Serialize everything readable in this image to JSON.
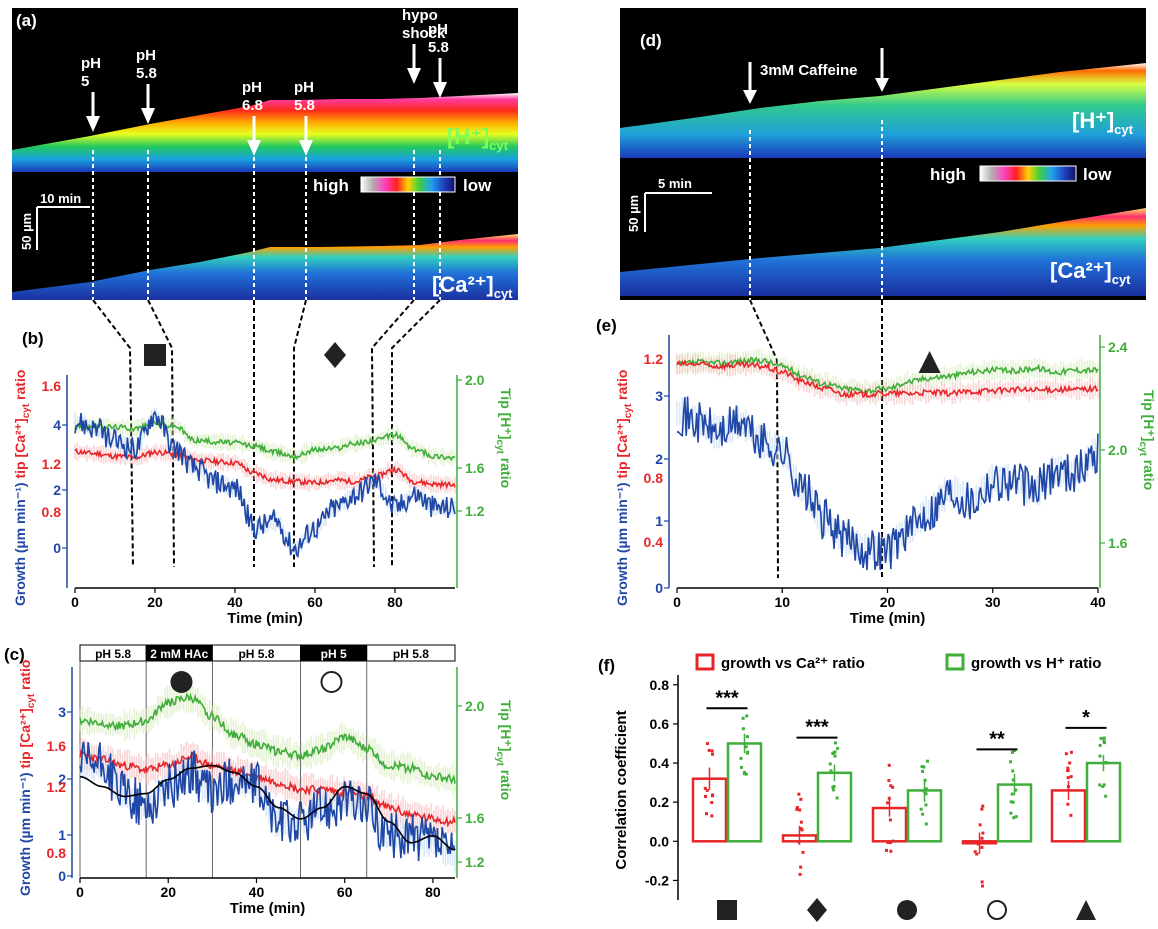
{
  "colors": {
    "red": "#e8262a",
    "green": "#3fae3a",
    "blue": "#1f47a6",
    "black": "#000000"
  },
  "panel_a": {
    "letter": "(a)",
    "arrows": [
      {
        "label_lines": [
          "pH",
          "5"
        ],
        "time_min": 5
      },
      {
        "label_lines": [
          "pH",
          "5.8"
        ],
        "time_min": 15
      },
      {
        "label_lines": [
          "pH",
          "6.8"
        ],
        "time_min": 45
      },
      {
        "label_lines": [
          "pH",
          "5.8"
        ],
        "time_min": 55
      },
      {
        "label_lines": [
          "hypo",
          "shock"
        ],
        "time_min": 75
      },
      {
        "label_lines": [
          "pH",
          "5.8"
        ],
        "time_min": 80
      }
    ],
    "h_label": "[H⁺]",
    "h_sub": "cyt",
    "ca_label": "[Ca²⁺]",
    "ca_sub": "cyt",
    "colorbar_high": "high",
    "colorbar_low": "low",
    "scale_time": "10 min",
    "scale_space": "50 µm"
  },
  "panel_d": {
    "letter": "(d)",
    "arrow_label": "3mM Caffeine",
    "h_label": "[H⁺]",
    "h_sub": "cyt",
    "ca_label": "[Ca²⁺]",
    "ca_sub": "cyt",
    "colorbar_high": "high",
    "colorbar_low": "low",
    "scale_time": "5 min",
    "scale_space": "50 µm"
  },
  "chart_data": [
    {
      "panel": "(b)",
      "type": "line",
      "xlabel": "Time (min)",
      "xlim": [
        0,
        95
      ],
      "x_ticks": [
        0,
        20,
        40,
        60,
        80
      ],
      "ylabel_left_parts": [
        "Growth (µm min⁻¹)",
        "tip [Ca²⁺]",
        "cyt",
        " ratio"
      ],
      "ylabel_right_parts": [
        "Tip [H⁺]",
        "cyt",
        " ratio"
      ],
      "left_ticks_growth": [
        "0",
        "2",
        "4"
      ],
      "left_ticks_ca": [
        "0.8",
        "1.2",
        "1.6"
      ],
      "right_ticks": [
        "1.2",
        "1.6",
        "2.0"
      ],
      "markers": [
        {
          "symbol": "square",
          "x": 20
        },
        {
          "symbol": "diamond",
          "x": 65
        }
      ],
      "event_times": [
        15,
        25,
        45,
        55,
        75,
        80
      ],
      "series": [
        {
          "color": "red",
          "x": [
            0,
            5,
            10,
            15,
            20,
            25,
            30,
            35,
            40,
            45,
            50,
            55,
            60,
            65,
            70,
            75,
            80,
            85,
            90,
            95
          ],
          "y": [
            1.45,
            1.42,
            1.38,
            1.36,
            1.44,
            1.42,
            1.33,
            1.3,
            1.28,
            1.12,
            1.02,
            1.0,
            0.98,
            1.02,
            1.0,
            1.08,
            1.18,
            1.0,
            0.96,
            0.95
          ]
        },
        {
          "color": "green",
          "x": [
            0,
            5,
            10,
            15,
            20,
            25,
            30,
            35,
            40,
            45,
            50,
            55,
            60,
            65,
            70,
            75,
            80,
            85,
            90,
            95
          ],
          "y": [
            1.82,
            1.83,
            1.82,
            1.8,
            1.87,
            1.83,
            1.62,
            1.6,
            1.58,
            1.53,
            1.44,
            1.38,
            1.48,
            1.5,
            1.57,
            1.62,
            1.7,
            1.48,
            1.38,
            1.36
          ]
        },
        {
          "color": "blue",
          "x": [
            0,
            5,
            10,
            15,
            20,
            25,
            30,
            35,
            40,
            45,
            50,
            55,
            60,
            65,
            70,
            75,
            80,
            85,
            90,
            95
          ],
          "y": [
            1.9,
            1.8,
            1.6,
            1.5,
            2.0,
            1.5,
            1.2,
            1.0,
            0.9,
            0.3,
            0.4,
            0.0,
            0.3,
            0.6,
            0.8,
            1.0,
            0.6,
            0.8,
            0.6,
            0.6
          ]
        }
      ]
    },
    {
      "panel": "(c)",
      "type": "line",
      "xlabel": "Time (min)",
      "xlim": [
        0,
        85
      ],
      "x_ticks": [
        0,
        20,
        40,
        60,
        80
      ],
      "ylabel_left_parts": [
        "Growth (µm min⁻¹)",
        "tip [Ca²⁺]",
        "cyt",
        " ratio"
      ],
      "ylabel_right_parts": [
        "Tip [H⁺]",
        "cyt",
        " ratio"
      ],
      "left_ticks_growth": [
        "0",
        "1",
        "2",
        "3"
      ],
      "left_ticks_ca": [
        "0.8",
        "1.2",
        "1.6"
      ],
      "right_ticks": [
        "1.2",
        "1.6",
        "2.0"
      ],
      "bands": [
        {
          "label": "pH 5.8",
          "x0": 0,
          "x1": 15,
          "dark": false
        },
        {
          "label": "2 mM HAc",
          "x0": 15,
          "x1": 30,
          "dark": true
        },
        {
          "label": "pH 5.8",
          "x0": 30,
          "x1": 50,
          "dark": false
        },
        {
          "label": "pH 5",
          "x0": 50,
          "x1": 65,
          "dark": true
        },
        {
          "label": "pH 5.8",
          "x0": 65,
          "x1": 85,
          "dark": false
        }
      ],
      "markers": [
        {
          "symbol": "filled-circle",
          "x": 23
        },
        {
          "symbol": "open-circle",
          "x": 57
        }
      ],
      "series": [
        {
          "color": "red",
          "x": [
            0,
            5,
            10,
            15,
            20,
            25,
            30,
            35,
            40,
            45,
            50,
            55,
            60,
            65,
            70,
            75,
            80,
            85
          ],
          "y": [
            1.58,
            1.54,
            1.5,
            1.47,
            1.5,
            1.56,
            1.5,
            1.46,
            1.42,
            1.38,
            1.33,
            1.33,
            1.31,
            1.28,
            1.2,
            1.15,
            1.12,
            1.1
          ]
        },
        {
          "color": "green",
          "x": [
            0,
            5,
            10,
            15,
            20,
            25,
            30,
            35,
            40,
            45,
            50,
            55,
            60,
            65,
            70,
            75,
            80,
            85
          ],
          "y": [
            1.82,
            1.8,
            1.78,
            1.82,
            1.95,
            1.98,
            1.85,
            1.72,
            1.65,
            1.6,
            1.57,
            1.62,
            1.7,
            1.62,
            1.5,
            1.48,
            1.42,
            1.4
          ]
        },
        {
          "color": "blue",
          "x": [
            0,
            5,
            10,
            15,
            20,
            25,
            30,
            35,
            40,
            45,
            50,
            55,
            60,
            65,
            70,
            75,
            80,
            85
          ],
          "y": [
            1.5,
            1.5,
            1.3,
            1.2,
            1.35,
            1.45,
            1.3,
            1.4,
            1.35,
            1.1,
            1.1,
            1.2,
            1.25,
            1.2,
            1.0,
            1.0,
            0.95,
            0.85
          ]
        },
        {
          "color": "black",
          "x": [
            0,
            5,
            10,
            15,
            20,
            25,
            30,
            35,
            40,
            45,
            50,
            55,
            60,
            65,
            70,
            75,
            80,
            85
          ],
          "y": [
            1.42,
            1.35,
            1.28,
            1.3,
            1.4,
            1.48,
            1.5,
            1.45,
            1.35,
            1.2,
            1.12,
            1.2,
            1.35,
            1.3,
            1.1,
            0.95,
            1.0,
            0.9
          ]
        }
      ]
    },
    {
      "panel": "(e)",
      "type": "line",
      "xlabel": "Time (min)",
      "xlim": [
        0,
        40
      ],
      "x_ticks": [
        0,
        10,
        20,
        30,
        40
      ],
      "ylabel_left_parts": [
        "Growth (µm min⁻¹)",
        "tip [Ca²⁺]",
        "cyt",
        " ratio"
      ],
      "ylabel_right_parts": [
        "Tip [H⁺]",
        "cyt",
        " ratio"
      ],
      "left_ticks_growth": [
        "0",
        "1",
        "2",
        "3"
      ],
      "left_ticks_ca": [
        "0.4",
        "0.8",
        "1.2"
      ],
      "right_ticks": [
        "1.6",
        "2.0",
        "2.4"
      ],
      "markers": [
        {
          "symbol": "triangle",
          "x": 24
        }
      ],
      "event_times": [
        10,
        20
      ],
      "series": [
        {
          "color": "green",
          "x": [
            0,
            2,
            4,
            6,
            8,
            10,
            12,
            14,
            16,
            18,
            20,
            22,
            24,
            26,
            28,
            30,
            32,
            34,
            36,
            38,
            40
          ],
          "y": [
            2.3,
            2.32,
            2.31,
            2.33,
            2.34,
            2.28,
            2.18,
            2.1,
            2.05,
            2.03,
            2.05,
            2.12,
            2.16,
            2.18,
            2.22,
            2.24,
            2.23,
            2.26,
            2.22,
            2.24,
            2.24
          ]
        },
        {
          "color": "red",
          "x": [
            0,
            2,
            4,
            6,
            8,
            10,
            12,
            14,
            16,
            18,
            20,
            22,
            24,
            26,
            28,
            30,
            32,
            34,
            36,
            38,
            40
          ],
          "y": [
            2.3,
            2.3,
            2.28,
            2.29,
            2.28,
            2.22,
            2.12,
            2.05,
            1.99,
            1.99,
            2.0,
            2.0,
            2.01,
            2.0,
            2.02,
            2.03,
            2.04,
            2.03,
            2.04,
            2.04,
            2.05
          ]
        },
        {
          "color": "blue",
          "x": [
            0,
            2,
            4,
            6,
            8,
            10,
            12,
            14,
            16,
            18,
            20,
            22,
            24,
            26,
            28,
            30,
            32,
            34,
            36,
            38,
            40
          ],
          "y": [
            1.8,
            1.7,
            1.6,
            1.7,
            1.5,
            1.4,
            1.0,
            0.7,
            0.5,
            0.4,
            0.4,
            0.6,
            0.8,
            1.0,
            0.9,
            1.1,
            1.1,
            1.0,
            1.2,
            1.2,
            1.4
          ]
        }
      ]
    },
    {
      "panel": "(f)",
      "type": "bar",
      "ylabel": "Correlation coefficient",
      "ylim": [
        -0.3,
        0.85
      ],
      "y_ticks": [
        "-0.2",
        "0.0",
        "0.2",
        "0.4",
        "0.6",
        "0.8"
      ],
      "legend": [
        {
          "label": "growth vs  Ca²⁺ ratio",
          "color": "red"
        },
        {
          "label": "growth vs  H⁺ ratio",
          "color": "green"
        }
      ],
      "categories": [
        "square",
        "diamond",
        "filled-circle",
        "open-circle",
        "triangle"
      ],
      "series": [
        {
          "color": "red",
          "values": [
            0.32,
            0.03,
            0.17,
            -0.01,
            0.26
          ]
        },
        {
          "color": "green",
          "values": [
            0.5,
            0.35,
            0.26,
            0.29,
            0.4
          ]
        }
      ],
      "significance": [
        "***",
        "***",
        "",
        "**",
        "*"
      ]
    }
  ]
}
